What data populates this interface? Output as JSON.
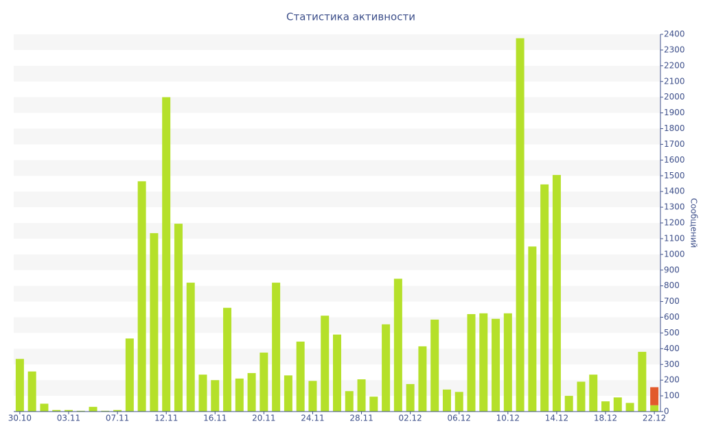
{
  "chart_data": {
    "type": "bar",
    "title": "Статистика активности",
    "y_label": "Сообщений",
    "stacked": true,
    "grid": true,
    "categories": [
      "30.10",
      null,
      null,
      null,
      "03.11",
      null,
      null,
      null,
      "07.11",
      null,
      null,
      null,
      "12.11",
      null,
      null,
      null,
      "16.11",
      null,
      null,
      null,
      "20.11",
      null,
      null,
      null,
      "24.11",
      null,
      null,
      null,
      "28.11",
      null,
      null,
      null,
      "02.12",
      null,
      null,
      null,
      "06.12",
      null,
      null,
      null,
      "10.12",
      null,
      null,
      null,
      "14.12",
      null,
      null,
      null,
      "18.12",
      null,
      null,
      null,
      "22.12"
    ],
    "series": [
      {
        "color": "#b5e02a",
        "values": [
          335,
          255,
          50,
          10,
          10,
          5,
          30,
          5,
          10,
          465,
          1465,
          1135,
          2000,
          1195,
          820,
          235,
          200,
          660,
          210,
          245,
          375,
          820,
          230,
          445,
          195,
          610,
          490,
          130,
          205,
          95,
          555,
          845,
          175,
          415,
          585,
          140,
          125,
          620,
          625,
          590,
          625,
          2375,
          1050,
          1445,
          1505,
          100,
          190,
          235,
          65,
          90,
          55,
          380,
          40
        ]
      },
      {
        "color": "#e25a2b",
        "values": [
          null,
          null,
          null,
          null,
          null,
          null,
          null,
          null,
          null,
          null,
          null,
          null,
          null,
          null,
          null,
          null,
          null,
          null,
          null,
          null,
          null,
          null,
          null,
          null,
          null,
          null,
          null,
          null,
          null,
          null,
          null,
          null,
          null,
          null,
          null,
          null,
          null,
          null,
          null,
          null,
          null,
          null,
          null,
          null,
          null,
          null,
          null,
          null,
          null,
          null,
          null,
          null,
          115
        ]
      }
    ],
    "ylim": [
      0,
      2400
    ],
    "yticks": [
      0,
      100,
      200,
      300,
      400,
      500,
      600,
      700,
      800,
      900,
      1000,
      1100,
      1200,
      1300,
      1400,
      1500,
      1600,
      1700,
      1800,
      1900,
      2000,
      2100,
      2200,
      2300,
      2400
    ]
  }
}
